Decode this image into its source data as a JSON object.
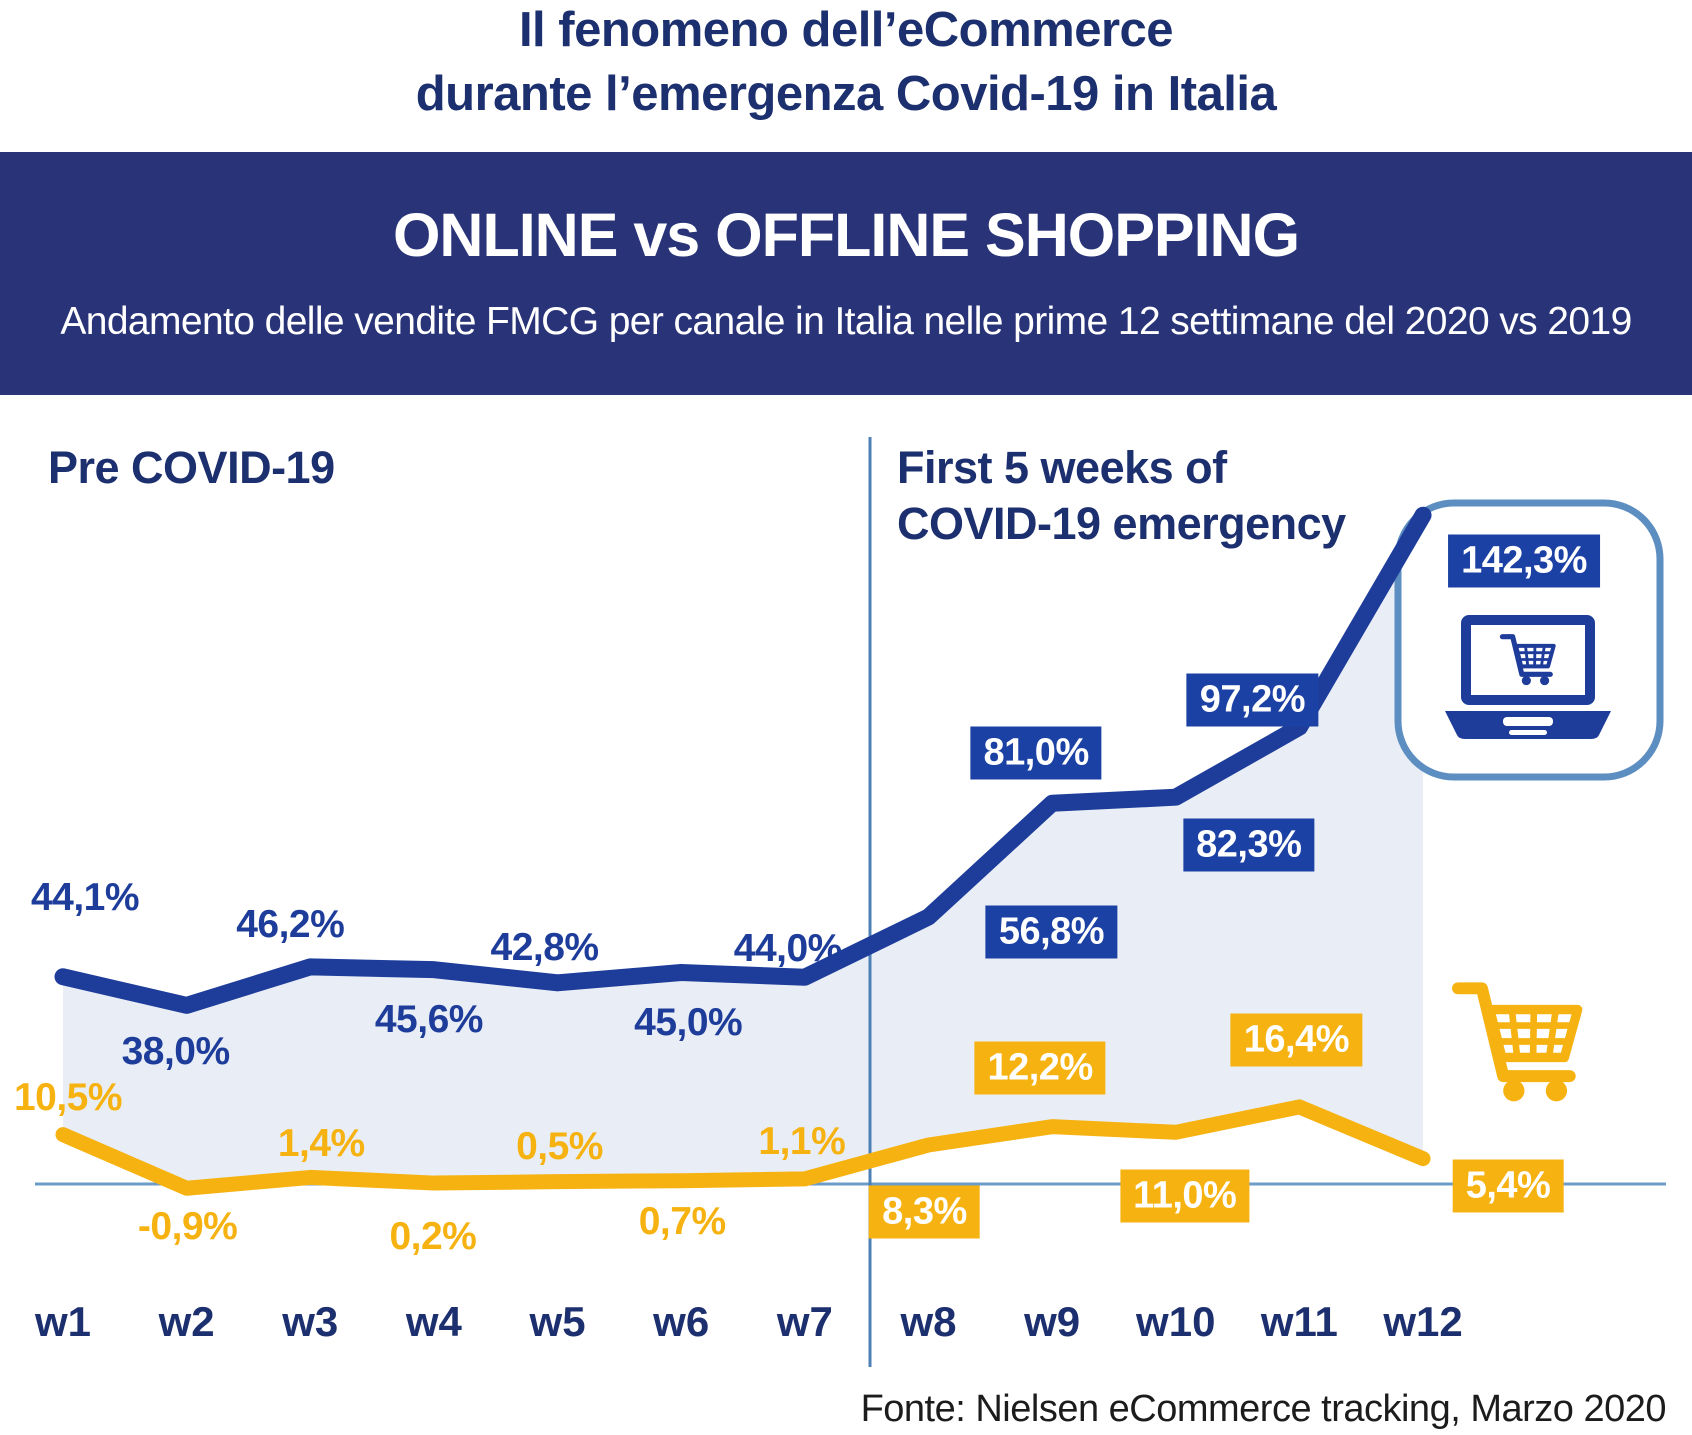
{
  "header": {
    "title_line1": "Il fenomeno dell’eCommerce",
    "title_line2": "durante l’emergenza Covid-19 in Italia",
    "banner_title": "ONLINE vs OFFLINE SHOPPING",
    "banner_subtitle": "Andamento delle vendite FMCG per canale in Italia nelle prime 12 settimane del 2020 vs 2019"
  },
  "annotations": {
    "pre_covid_label": "Pre COVID-19",
    "covid_label_line1": "First 5 weeks of",
    "covid_label_line2": "COVID-19 emergency"
  },
  "icons": {
    "online": "laptop-shopping-cart-icon",
    "offline": "shopping-cart-icon"
  },
  "colors": {
    "navy_text": "#1c2f6e",
    "banner_bg": "#293377",
    "online_blue": "#1e3d9b",
    "badge_blue": "#1c41a4",
    "offline_yellow": "#f6b211",
    "fill_area": "#e9eef6",
    "axis_line": "#6c9dc8",
    "divider_line": "#4d80b6",
    "box_border": "#5d8ec1",
    "footer_text": "#1c1c1c"
  },
  "footer": {
    "source": "Fonte: Nielsen eCommerce tracking, Marzo 2020"
  },
  "chart_data": {
    "type": "line",
    "title": "ONLINE vs OFFLINE SHOPPING",
    "subtitle": "Andamento delle vendite FMCG per canale in Italia nelle prime 12 settimane del 2020 vs 2019",
    "categories": [
      "w1",
      "w2",
      "w3",
      "w4",
      "w5",
      "w6",
      "w7",
      "w8",
      "w9",
      "w10",
      "w11",
      "w12"
    ],
    "series": [
      {
        "name": "Online",
        "color_key": "online_blue",
        "values": [
          44.1,
          38.0,
          46.2,
          45.6,
          42.8,
          45.0,
          44.0,
          56.8,
          81.0,
          82.3,
          97.2,
          142.3
        ]
      },
      {
        "name": "Offline",
        "color_key": "offline_yellow",
        "values": [
          10.5,
          -0.9,
          1.4,
          0.2,
          0.5,
          0.7,
          1.1,
          8.3,
          12.2,
          11.0,
          16.4,
          5.4
        ]
      }
    ],
    "pre_covid_week_count": 7,
    "value_suffix": "%",
    "decimal_separator": ",",
    "grid": false,
    "legend_position": "none",
    "area_fill_between_series": true
  }
}
